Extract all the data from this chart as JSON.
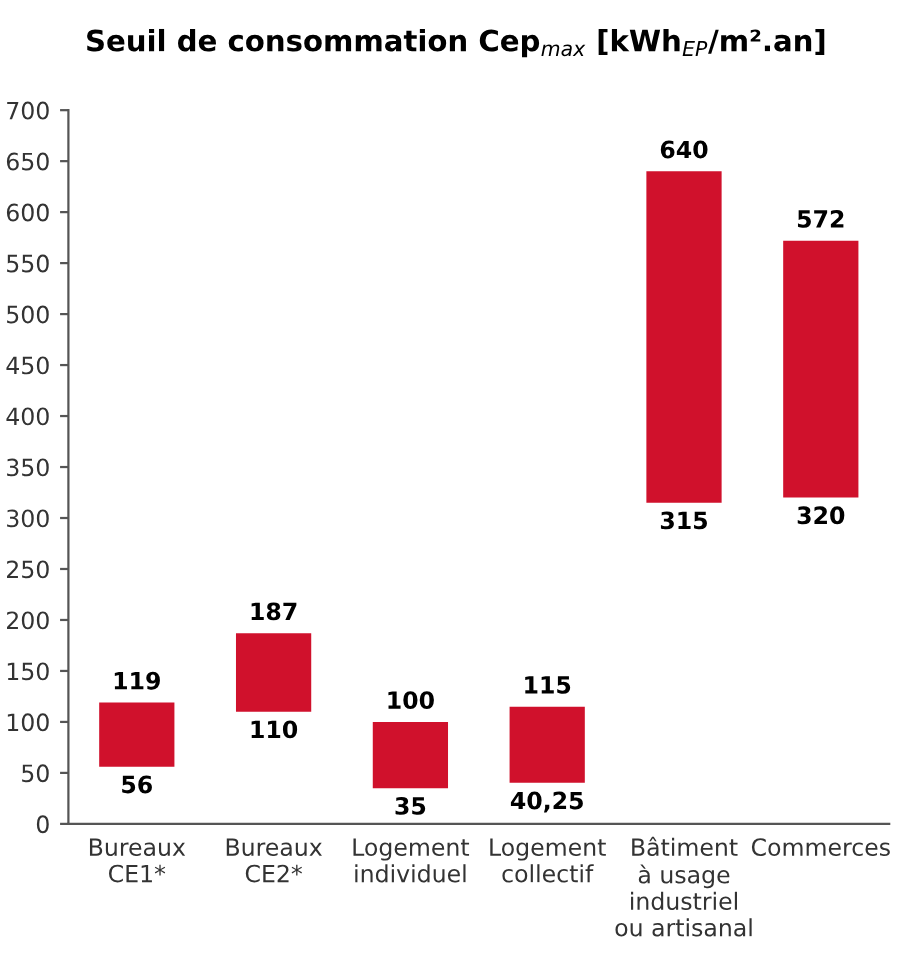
{
  "chart_data": {
    "type": "bar",
    "title": "Seuil de consommation Cep$_{max}$ [kWh$_{EP}$/m².an]",
    "categories": [
      "Bureaux\nCE1*",
      "Bureaux\nCE2*",
      "Logement\nindividuel",
      "Logement\ncollectif",
      "Bâtiment\nà usage\nindustriel\nou artisanal",
      "Commerces"
    ],
    "values": [
      63,
      77,
      65,
      74.75,
      325,
      252
    ],
    "base": [
      56,
      110,
      35,
      40.25,
      315,
      320
    ],
    "color": "#d0112c",
    "ylim": [
      0,
      700
    ],
    "yticks": [
      0,
      50,
      100,
      150,
      200,
      250,
      300,
      350,
      400,
      450,
      500,
      550,
      600,
      650,
      700
    ],
    "grid": false,
    "annotations": [
      {
        "text": "119",
        "x": "Bureaux\nCE1*",
        "y": 119
      },
      {
        "text": "56",
        "x": "Bureaux\nCE1*",
        "y": 56
      },
      {
        "text": "187",
        "x": "Bureaux\nCE2*",
        "y": 187
      },
      {
        "text": "110",
        "x": "Bureaux\nCE2*",
        "y": 110
      },
      {
        "text": "100",
        "x": "Logement\nindividuel",
        "y": 100
      },
      {
        "text": "35",
        "x": "Logement\nindividuel",
        "y": 35
      },
      {
        "text": "115",
        "x": "Logement\ncollectif",
        "y": 115
      },
      {
        "text": "40,25",
        "x": "Logement\ncollectif",
        "y": 40.25
      },
      {
        "text": "640",
        "x": "Bâtiment\nà usage\nindustriel\nou artisanal",
        "y": 640
      },
      {
        "text": "315",
        "x": "Bâtiment\nà usage\nindustriel\nou artisanal",
        "y": 315
      },
      {
        "text": "572",
        "x": "Commerces",
        "y": 572
      },
      {
        "text": "320",
        "x": "Commerces",
        "y": 320
      }
    ]
  }
}
